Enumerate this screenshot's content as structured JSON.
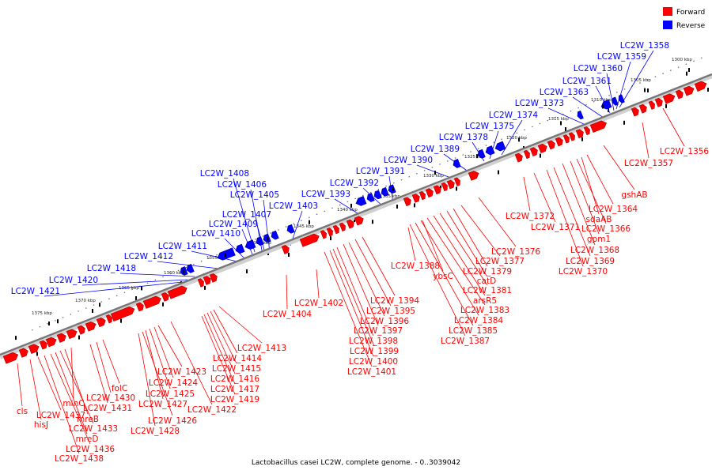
{
  "legend": {
    "items": [
      {
        "label": "Forward",
        "color": "#ff0000"
      },
      {
        "label": "Reverse",
        "color": "#0000ff"
      }
    ]
  },
  "caption": "Lactobacillus casei LC2W, complete genome. - 0..3039042",
  "colors": {
    "forward": "#ff0000",
    "reverse": "#0000ff",
    "axis": "#888888"
  },
  "scale": {
    "ticks": [
      "1300 kbp",
      "1305 kbp",
      "1310 kbp",
      "1315 kbp",
      "1320 kbp",
      "1325 kbp",
      "1330 kbp",
      "1335 kbp",
      "1340 kbp",
      "1345 kbp",
      "1350 kbp",
      "1355 kbp",
      "1360 kbp",
      "1365 kbp",
      "1370 kbp",
      "1375 kbp"
    ]
  },
  "reverse_labels": [
    "LC2W_1358",
    "LC2W_1359",
    "LC2W_1360",
    "LC2W_1361",
    "LC2W_1363",
    "LC2W_1373",
    "LC2W_1374",
    "LC2W_1375",
    "LC2W_1378",
    "LC2W_1389",
    "LC2W_1390",
    "LC2W_1391",
    "LC2W_1392",
    "LC2W_1393",
    "LC2W_1403",
    "LC2W_1408",
    "LC2W_1406",
    "LC2W_1405",
    "LC2W_1407",
    "LC2W_1409",
    "LC2W_1410",
    "LC2W_1411",
    "LC2W_1412",
    "LC2W_1418",
    "LC2W_1420",
    "LC2W_1421"
  ],
  "forward_labels": [
    "LC2W_1356",
    "LC2W_1357",
    "gshAB",
    "LC2W_1364",
    "sdaAB",
    "LC2W_1366",
    "gpm1",
    "LC2W_1368",
    "LC2W_1369",
    "LC2W_1370",
    "LC2W_1372",
    "LC2W_1371",
    "LC2W_1376",
    "LC2W_1377",
    "LC2W_1379",
    "catD",
    "LC2W_1381",
    "arsR5",
    "LC2W_1383",
    "LC2W_1384",
    "LC2W_1385",
    "LC2W_1387",
    "LC2W_1388",
    "ybsC",
    "LC2W_1394",
    "LC2W_1395",
    "LC2W_1396",
    "LC2W_1397",
    "LC2W_1398",
    "LC2W_1399",
    "LC2W_1400",
    "LC2W_1401",
    "LC2W_1402",
    "LC2W_1404",
    "LC2W_1413",
    "LC2W_1414",
    "LC2W_1415",
    "LC2W_1416",
    "LC2W_1417",
    "LC2W_1419",
    "LC2W_1422",
    "LC2W_1423",
    "LC2W_1424",
    "LC2W_1425",
    "LC2W_1427",
    "LC2W_1426",
    "LC2W_1428",
    "folC",
    "LC2W_1430",
    "LC2W_1431",
    "minC",
    "mreB",
    "LC2W_1433",
    "mreD",
    "LC2W_1436",
    "LC2W_1438",
    "LC2W_1437",
    "hisJ",
    "cls"
  ]
}
